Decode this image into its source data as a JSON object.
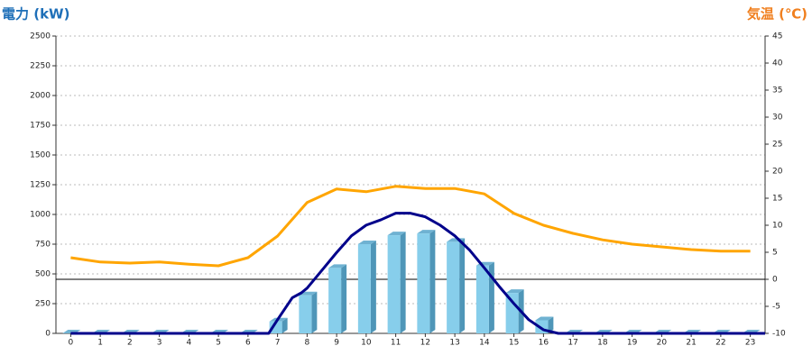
{
  "chart_data": {
    "type": "combo",
    "y_label": "電力 (kW)",
    "y2_label": "気温 (℃)",
    "categories": [
      "0",
      "1",
      "2",
      "3",
      "4",
      "5",
      "6",
      "7",
      "8",
      "9",
      "10",
      "11",
      "12",
      "13",
      "14",
      "15",
      "16",
      "17",
      "18",
      "19",
      "20",
      "21",
      "22",
      "23"
    ],
    "series": [
      {
        "type": "bar",
        "color": "#87ceeb",
        "values": [
          0,
          0,
          0,
          0,
          0,
          0,
          0,
          100,
          320,
          550,
          750,
          825,
          840,
          770,
          570,
          340,
          110,
          0,
          0,
          0,
          0,
          0,
          0,
          0
        ]
      },
      {
        "type": "line",
        "color": "#00008b",
        "x": [
          0,
          6.7,
          7,
          7.5,
          7.8,
          8,
          8.5,
          9,
          9.5,
          10,
          10.5,
          11,
          11.5,
          12,
          12.5,
          13,
          13.5,
          14,
          14.5,
          15,
          15.5,
          16,
          16.5,
          23.5
        ],
        "values": [
          0,
          0,
          115,
          300,
          340,
          380,
          530,
          680,
          820,
          910,
          955,
          1010,
          1010,
          980,
          910,
          820,
          700,
          550,
          395,
          250,
          115,
          30,
          0,
          0
        ]
      },
      {
        "type": "line",
        "axis": "y2",
        "color": "#ffa500",
        "values": [
          4,
          3.2,
          3,
          3.2,
          2.8,
          2.5,
          4,
          8,
          14.2,
          16.7,
          16.2,
          17.2,
          16.8,
          16.8,
          15.8,
          12.2,
          10,
          8.5,
          7.3,
          6.5,
          6,
          5.5,
          5.2,
          5.2
        ]
      }
    ],
    "ylim": [
      0,
      2500
    ],
    "yticks": [
      0,
      250,
      500,
      750,
      1000,
      1250,
      1500,
      1750,
      2000,
      2250,
      2500
    ],
    "y2lim": [
      -10,
      45
    ],
    "y2ticks": [
      -10,
      -5,
      0,
      5,
      10,
      15,
      20,
      25,
      30,
      35,
      40,
      45
    ],
    "ref_line_y2": 0,
    "grid": true
  }
}
